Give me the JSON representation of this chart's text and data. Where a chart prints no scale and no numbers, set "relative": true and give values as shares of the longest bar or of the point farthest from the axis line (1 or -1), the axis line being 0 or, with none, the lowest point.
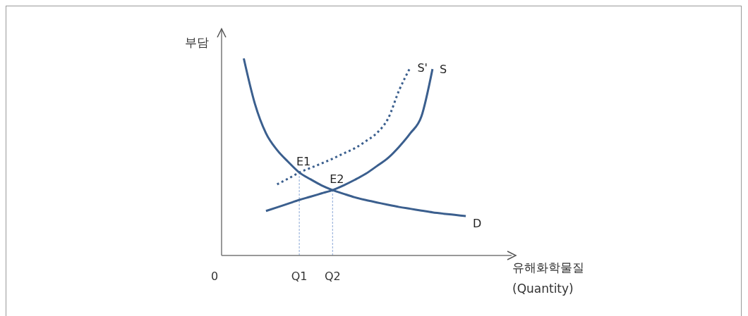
{
  "chart_data": {
    "type": "line",
    "relative": true,
    "ylabel": "부담",
    "xlabel": "유해화학물질\n(Quantity)",
    "tick_labels": "x",
    "marker": "none",
    "legend": false,
    "categories": [
      "0",
      null,
      null,
      null,
      null,
      null,
      null,
      "Q1",
      null,
      null,
      "Q2",
      null,
      null,
      null,
      null,
      null,
      null,
      null,
      null,
      null,
      null,
      null,
      null,
      null,
      null,
      null,
      null
    ],
    "series": [
      {
        "name": "D",
        "color": "#3b5f8e",
        "line_style": "solid",
        "values": [
          null,
          null,
          1.0,
          0.77,
          0.62,
          0.535,
          0.475,
          0.421,
          0.387,
          0.356,
          0.332,
          0.313,
          0.295,
          0.281,
          0.269,
          0.257,
          0.246,
          0.237,
          0.228,
          0.219,
          0.212,
          0.206,
          0.2,
          null,
          null,
          null,
          null
        ]
      },
      {
        "name": "S",
        "color": "#3b5f8e",
        "line_style": "solid",
        "values": [
          null,
          null,
          null,
          null,
          0.226,
          0.244,
          0.263,
          0.282,
          0.298,
          0.315,
          0.332,
          0.356,
          0.384,
          0.415,
          0.454,
          0.495,
          0.552,
          0.62,
          0.705,
          0.946,
          null,
          null,
          null,
          null,
          null,
          null,
          null
        ]
      },
      {
        "name": "S'",
        "color": "#3b5f8e",
        "line_style": "dotted",
        "values": [
          null,
          null,
          null,
          null,
          null,
          0.361,
          0.39,
          0.421,
          0.444,
          0.467,
          0.491,
          0.518,
          0.544,
          0.58,
          0.622,
          0.695,
          0.839,
          0.954,
          null,
          null,
          null,
          null,
          null,
          null,
          null,
          null,
          null
        ]
      }
    ],
    "ref_lines": [
      {
        "axis": "x",
        "value": "Q1",
        "color": "#8aa7d6",
        "line_style": "dashed"
      },
      {
        "axis": "x",
        "value": "Q2",
        "color": "#8aa7d6",
        "line_style": "dashed"
      }
    ],
    "annotations": [
      {
        "text": "E1",
        "x": "Q1",
        "y": 0.421
      },
      {
        "text": "E2",
        "x": "Q2",
        "y": 0.332
      }
    ]
  }
}
